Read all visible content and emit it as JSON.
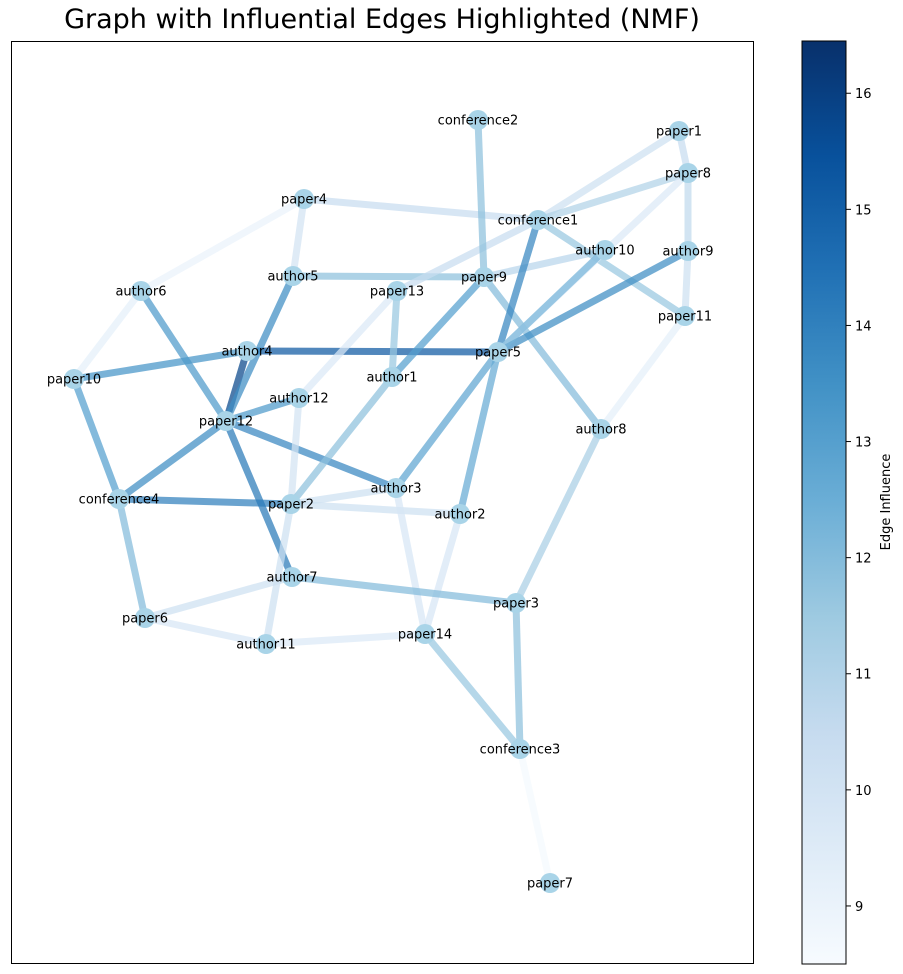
{
  "title": "Graph with Influential Edges Highlighted (NMF)",
  "colorbar": {
    "label": "Edge Influence",
    "min": 8.5,
    "max": 16.45,
    "ticks": [
      9,
      10,
      11,
      12,
      13,
      14,
      15,
      16
    ],
    "colormap": "Blues"
  },
  "node_color": "#a9d4e8",
  "nodes": [
    "paper1",
    "paper2",
    "paper3",
    "paper4",
    "paper5",
    "paper6",
    "paper7",
    "paper8",
    "paper9",
    "paper10",
    "paper11",
    "paper12",
    "paper13",
    "paper14",
    "author1",
    "author2",
    "author3",
    "author4",
    "author5",
    "author6",
    "author7",
    "author8",
    "author9",
    "author10",
    "author11",
    "author12",
    "conference1",
    "conference2",
    "conference3",
    "conference4"
  ],
  "edges": [
    {
      "source": "author4",
      "target": "paper5",
      "influence": 15.2
    },
    {
      "source": "author4",
      "target": "paper12",
      "influence": 15.8
    },
    {
      "source": "author4",
      "target": "paper10",
      "influence": 13.4
    },
    {
      "source": "author5",
      "target": "paper12",
      "influence": 13.6
    },
    {
      "source": "author5",
      "target": "paper9",
      "influence": 11.8
    },
    {
      "source": "author6",
      "target": "paper12",
      "influence": 13.2
    },
    {
      "source": "author6",
      "target": "paper10",
      "influence": 9.2
    },
    {
      "source": "author6",
      "target": "paper4",
      "influence": 9.0
    },
    {
      "source": "paper4",
      "target": "author5",
      "influence": 10.0
    },
    {
      "source": "paper4",
      "target": "conference1",
      "influence": 10.4
    },
    {
      "source": "paper10",
      "target": "conference4",
      "influence": 13.0
    },
    {
      "source": "conference4",
      "target": "paper12",
      "influence": 13.6
    },
    {
      "source": "conference4",
      "target": "paper2",
      "influence": 14.0
    },
    {
      "source": "conference4",
      "target": "paper6",
      "influence": 12.0
    },
    {
      "source": "paper12",
      "target": "author12",
      "influence": 13.2
    },
    {
      "source": "paper12",
      "target": "author3",
      "influence": 13.8
    },
    {
      "source": "paper12",
      "target": "author7",
      "influence": 14.2
    },
    {
      "source": "author12",
      "target": "paper13",
      "influence": 9.6
    },
    {
      "source": "author12",
      "target": "paper2",
      "influence": 10.0
    },
    {
      "source": "paper2",
      "target": "author1",
      "influence": 11.8
    },
    {
      "source": "paper2",
      "target": "author2",
      "influence": 10.2
    },
    {
      "source": "paper2",
      "target": "author11",
      "influence": 10.2
    },
    {
      "source": "author1",
      "target": "paper13",
      "influence": 11.6
    },
    {
      "source": "author1",
      "target": "paper9",
      "influence": 13.0
    },
    {
      "source": "paper13",
      "target": "conference1",
      "influence": 10.4
    },
    {
      "source": "paper9",
      "target": "conference2",
      "influence": 11.8
    },
    {
      "source": "paper9",
      "target": "author10",
      "influence": 10.8
    },
    {
      "source": "paper9",
      "target": "author8",
      "influence": 12.0
    },
    {
      "source": "conference1",
      "target": "paper5",
      "influence": 13.8
    },
    {
      "source": "conference1",
      "target": "paper1",
      "influence": 10.2
    },
    {
      "source": "conference1",
      "target": "paper8",
      "influence": 11.0
    },
    {
      "source": "conference1",
      "target": "paper11",
      "influence": 11.6
    },
    {
      "source": "paper1",
      "target": "paper8",
      "influence": 10.4
    },
    {
      "source": "paper8",
      "target": "paper5",
      "influence": 9.6
    },
    {
      "source": "paper8",
      "target": "author9",
      "influence": 10.6
    },
    {
      "source": "author9",
      "target": "paper5",
      "influence": 13.6
    },
    {
      "source": "author9",
      "target": "paper11",
      "influence": 10.2
    },
    {
      "source": "paper11",
      "target": "author8",
      "influence": 9.2
    },
    {
      "source": "author10",
      "target": "paper5",
      "influence": 12.2
    },
    {
      "source": "paper5",
      "target": "author3",
      "influence": 12.8
    },
    {
      "source": "paper5",
      "target": "author2",
      "influence": 12.6
    },
    {
      "source": "paper2",
      "target": "author3",
      "influence": 10.2
    },
    {
      "source": "author3",
      "target": "paper14",
      "influence": 9.8
    },
    {
      "source": "author2",
      "target": "paper14",
      "influence": 9.8
    },
    {
      "source": "author7",
      "target": "paper3",
      "influence": 12.0
    },
    {
      "source": "author7",
      "target": "paper6",
      "influence": 10.2
    },
    {
      "source": "author11",
      "target": "paper6",
      "influence": 9.8
    },
    {
      "source": "author11",
      "target": "paper14",
      "influence": 9.6
    },
    {
      "source": "paper14",
      "target": "conference3",
      "influence": 11.6
    },
    {
      "source": "paper3",
      "target": "conference3",
      "influence": 11.8
    },
    {
      "source": "paper3",
      "target": "author8",
      "influence": 11.2
    },
    {
      "source": "conference3",
      "target": "paper7",
      "influence": 8.6
    }
  ]
}
